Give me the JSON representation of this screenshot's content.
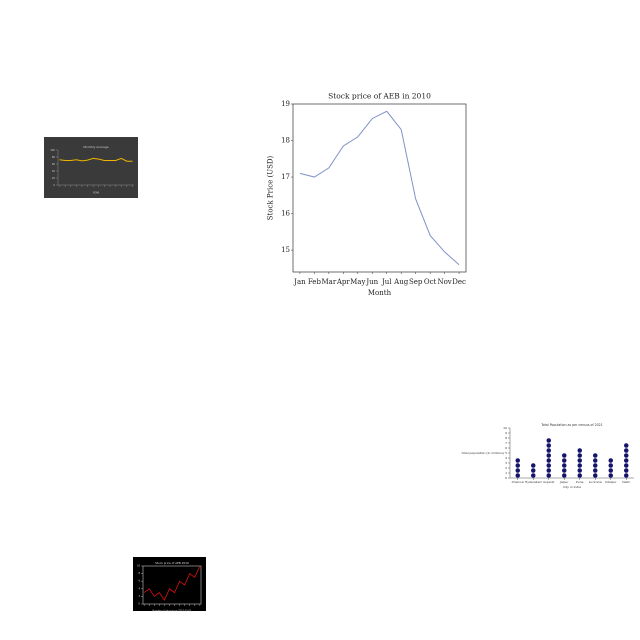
{
  "chart_data": [
    {
      "type": "line",
      "title": "Stock price of AEB in 2010",
      "x_label": "Month",
      "y_label": "Stock Price (USD)",
      "categories": [
        "Jan",
        "Feb",
        "Mar",
        "Apr",
        "May",
        "Jun",
        "Jul",
        "Aug",
        "Sep",
        "Oct",
        "Nov",
        "Dec"
      ],
      "values": [
        17.1,
        17.0,
        17.25,
        17.85,
        18.1,
        18.6,
        18.8,
        18.3,
        16.4,
        15.4,
        14.95,
        14.6
      ],
      "color": "#8192c8",
      "ylim": [
        14.4,
        19.0
      ],
      "yticks": [
        15,
        16,
        17,
        18,
        19
      ]
    },
    {
      "type": "line",
      "title": "Monthly Average",
      "x_label": "YEAR",
      "categories": [
        null,
        null,
        null,
        null,
        null,
        null,
        null,
        null,
        null,
        null,
        null,
        null,
        null,
        null
      ],
      "values": [
        72,
        70,
        70,
        72,
        69,
        71,
        76,
        74,
        70,
        70,
        70,
        76,
        68,
        68
      ],
      "color": "#f0b400",
      "ylim": [
        0,
        100
      ],
      "yticks": [
        0,
        20,
        40,
        60,
        80,
        100
      ]
    },
    {
      "type": "dot",
      "title": "Total Population as per census of 2021",
      "x_label": "City in India",
      "y_label": "total population (in millions)",
      "categories": [
        "Chennai",
        "Hyderabad",
        "Gujarat",
        "Jaipur",
        "Pune",
        "Lucknow",
        "Udaipur",
        "Delhi"
      ],
      "values": [
        4,
        3,
        8,
        5,
        6,
        5,
        4,
        7
      ],
      "color": "#14146b",
      "ylim": [
        0,
        10
      ],
      "yticks": [
        0,
        1,
        2,
        3,
        4,
        5,
        6,
        7,
        8,
        9,
        10
      ]
    },
    {
      "type": "line",
      "title": "Stock price of AEB 2010",
      "x_label": "Number of days since 2010-01-01",
      "categories": [
        null,
        null,
        null,
        null,
        null,
        null,
        null,
        null,
        null,
        null,
        null,
        null
      ],
      "values": [
        3,
        4,
        2,
        3,
        1,
        4,
        3,
        6,
        5,
        8,
        7,
        10
      ],
      "color": "#e01010",
      "ylim": [
        0,
        10
      ],
      "yticks": [
        0,
        2,
        4,
        6,
        8,
        10
      ]
    }
  ]
}
